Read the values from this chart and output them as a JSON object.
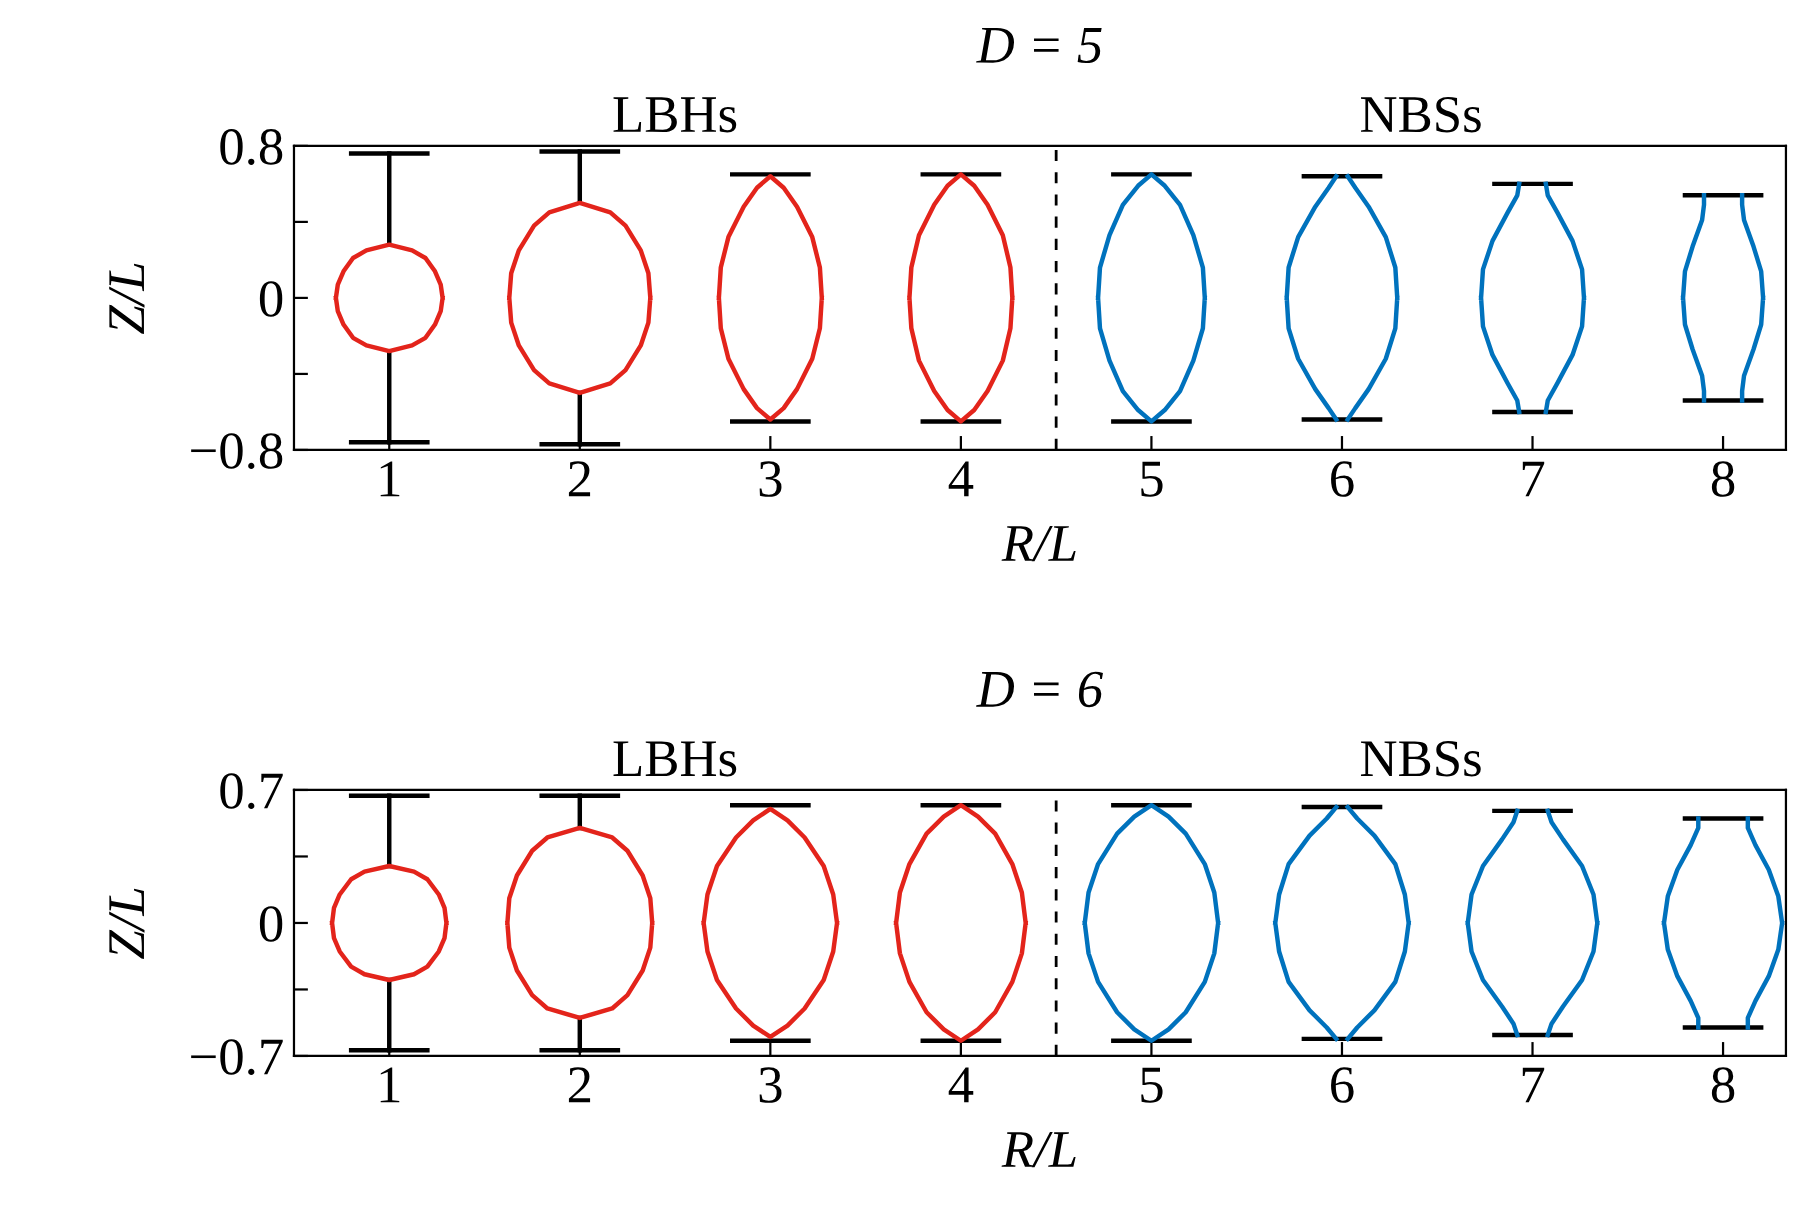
{
  "chart_data": [
    {
      "type": "line",
      "title": "D = 5",
      "xlabel": "R/L",
      "ylabel": "Z/L",
      "xlim": [
        0.5,
        8.33
      ],
      "ylim": [
        -0.8,
        0.8
      ],
      "xticks": [
        1,
        2,
        3,
        4,
        5,
        6,
        7,
        8
      ],
      "yticks": [
        {
          "value": -0.8,
          "label": "−0.8"
        },
        {
          "value": -0.4,
          "label": null
        },
        0,
        {
          "value": 0.4,
          "label": null
        },
        0.8
      ],
      "ref_lines": [
        {
          "axis": "x",
          "value": 4.5,
          "color": "#000000",
          "line_style": "dashed"
        }
      ],
      "annotations": [
        "LBHs",
        "NBSs"
      ],
      "series": [
        {
          "color": "#000000",
          "x": [
            0.8,
            1.2,
            null,
            1.8,
            2.2,
            null,
            2.8,
            3.2,
            null,
            3.8,
            4.2,
            null,
            4.8,
            5.2,
            null,
            5.8,
            6.2,
            null,
            6.8,
            7.2,
            null,
            7.8,
            8.2
          ],
          "values": [
            0.76,
            0.76,
            null,
            0.77,
            0.77,
            null,
            0.65,
            0.65,
            null,
            0.65,
            0.65,
            null,
            0.65,
            0.65,
            null,
            0.64,
            0.64,
            null,
            0.6,
            0.6,
            null,
            0.54,
            0.54
          ]
        },
        {
          "color": "#000000",
          "x": [
            0.8,
            1.2,
            null,
            1.8,
            2.2,
            null,
            2.8,
            3.2,
            null,
            3.8,
            4.2,
            null,
            4.8,
            5.2,
            null,
            5.8,
            6.2,
            null,
            6.8,
            7.2,
            null,
            7.8,
            8.2
          ],
          "values": [
            -0.76,
            -0.76,
            null,
            -0.77,
            -0.77,
            null,
            -0.65,
            -0.65,
            null,
            -0.65,
            -0.65,
            null,
            -0.65,
            -0.65,
            null,
            -0.64,
            -0.64,
            null,
            -0.6,
            -0.6,
            null,
            -0.54,
            -0.54
          ]
        },
        {
          "color": "#000000",
          "x": [
            1,
            1,
            1.5,
            2,
            2
          ],
          "values": [
            0.76,
            0.28,
            null,
            0.77,
            0.5
          ]
        },
        {
          "color": "#000000",
          "x": [
            1,
            1,
            1.5,
            2,
            2
          ],
          "values": [
            -0.28,
            -0.76,
            null,
            -0.5,
            -0.77
          ]
        },
        {
          "color": "#e3241b",
          "x": [
            0.72,
            0.73,
            0.76,
            0.81,
            0.88,
            1,
            1.12,
            1.19,
            1.24,
            1.27,
            1.28,
            1,
            0.72,
            0.73,
            0.76,
            0.81,
            0.88,
            1,
            1.12,
            1.19,
            1.24,
            1.27,
            1.28
          ],
          "values": [
            0,
            0.07,
            0.14,
            0.21,
            0.25,
            0.28,
            0.25,
            0.21,
            0.14,
            0.07,
            0,
            null,
            0,
            -0.07,
            -0.14,
            -0.21,
            -0.25,
            -0.28,
            -0.25,
            -0.21,
            -0.14,
            -0.07,
            0
          ]
        },
        {
          "color": "#e3241b",
          "x": [
            1.63,
            1.64,
            1.68,
            1.76,
            1.84,
            2,
            2.16,
            2.24,
            2.32,
            2.36,
            2.37,
            2,
            1.63,
            1.64,
            1.68,
            1.76,
            1.84,
            2,
            2.16,
            2.24,
            2.32,
            2.36,
            2.37
          ],
          "values": [
            0,
            0.13,
            0.25,
            0.38,
            0.45,
            0.5,
            0.45,
            0.38,
            0.25,
            0.13,
            0,
            null,
            0,
            -0.13,
            -0.25,
            -0.38,
            -0.45,
            -0.5,
            -0.45,
            -0.38,
            -0.25,
            -0.13,
            0
          ]
        },
        {
          "color": "#e3241b",
          "x": [
            2.73,
            2.74,
            2.78,
            2.86,
            2.93,
            3,
            3.07,
            3.14,
            3.22,
            3.26,
            3.27,
            3,
            2.73,
            2.74,
            2.78,
            2.86,
            2.93,
            3,
            3.07,
            3.14,
            3.22,
            3.26,
            3.27
          ],
          "values": [
            0,
            0.16,
            0.32,
            0.48,
            0.58,
            0.64,
            0.58,
            0.48,
            0.32,
            0.16,
            0,
            null,
            0,
            -0.16,
            -0.32,
            -0.48,
            -0.58,
            -0.64,
            -0.58,
            -0.48,
            -0.32,
            -0.16,
            0
          ]
        },
        {
          "color": "#e3241b",
          "x": [
            3.73,
            3.74,
            3.78,
            3.86,
            3.93,
            4,
            4.07,
            4.14,
            4.22,
            4.26,
            4.27,
            4,
            3.73,
            3.74,
            3.78,
            3.86,
            3.93,
            4,
            4.07,
            4.14,
            4.22,
            4.26,
            4.27
          ],
          "values": [
            0,
            0.16,
            0.33,
            0.49,
            0.59,
            0.65,
            0.59,
            0.49,
            0.33,
            0.16,
            0,
            null,
            0,
            -0.16,
            -0.33,
            -0.49,
            -0.59,
            -0.65,
            -0.59,
            -0.49,
            -0.33,
            -0.16,
            0
          ]
        },
        {
          "color": "#0072bd",
          "x": [
            4.72,
            4.73,
            4.78,
            4.85,
            4.93,
            5,
            5.07,
            5.15,
            5.22,
            5.27,
            5.28,
            5,
            4.72,
            4.73,
            4.78,
            4.85,
            4.93,
            5,
            5.07,
            5.15,
            5.22,
            5.27,
            5.28
          ],
          "values": [
            0,
            0.16,
            0.33,
            0.49,
            0.59,
            0.65,
            0.59,
            0.49,
            0.33,
            0.16,
            0,
            null,
            0,
            -0.16,
            -0.33,
            -0.49,
            -0.59,
            -0.65,
            -0.59,
            -0.49,
            -0.33,
            -0.16,
            0
          ]
        },
        {
          "color": "#0072bd",
          "x": [
            5.71,
            5.72,
            5.77,
            5.86,
            5.93,
            5.97,
            6,
            6.03,
            6.07,
            6.14,
            6.23,
            6.28,
            6.29,
            6,
            5.71,
            5.72,
            5.77,
            5.86,
            5.93,
            5.97,
            6,
            6.03,
            6.07,
            6.14,
            6.23,
            6.28,
            6.29
          ],
          "values": [
            0,
            0.16,
            0.32,
            0.48,
            0.58,
            0.64,
            null,
            0.64,
            0.58,
            0.48,
            0.32,
            0.16,
            0,
            null,
            0,
            -0.16,
            -0.32,
            -0.48,
            -0.58,
            -0.64,
            null,
            -0.64,
            -0.58,
            -0.48,
            -0.32,
            -0.16,
            0
          ]
        },
        {
          "color": "#0072bd",
          "x": [
            6.73,
            6.74,
            6.79,
            6.87,
            6.92,
            6.93,
            7,
            7.07,
            7.08,
            7.13,
            7.21,
            7.26,
            7.27,
            7,
            6.73,
            6.74,
            6.79,
            6.87,
            6.92,
            6.93,
            7,
            7.07,
            7.08,
            7.13,
            7.21,
            7.26,
            7.27
          ],
          "values": [
            0,
            0.15,
            0.3,
            0.45,
            0.54,
            0.6,
            null,
            0.6,
            0.54,
            0.45,
            0.3,
            0.15,
            0,
            null,
            0,
            -0.15,
            -0.3,
            -0.45,
            -0.54,
            -0.6,
            null,
            -0.6,
            -0.54,
            -0.45,
            -0.3,
            -0.15,
            0
          ]
        },
        {
          "color": "#0072bd",
          "x": [
            7.79,
            7.8,
            7.84,
            7.89,
            7.9,
            7.9,
            8,
            8.1,
            8.1,
            8.11,
            8.16,
            8.2,
            8.21,
            8,
            7.79,
            7.8,
            7.84,
            7.89,
            7.9,
            7.9,
            8,
            8.1,
            8.1,
            8.11,
            8.16,
            8.2,
            8.21
          ],
          "values": [
            0,
            0.14,
            0.27,
            0.41,
            0.49,
            0.54,
            null,
            0.54,
            0.49,
            0.41,
            0.27,
            0.14,
            0,
            null,
            0,
            -0.14,
            -0.27,
            -0.41,
            -0.49,
            -0.54,
            null,
            -0.54,
            -0.49,
            -0.41,
            -0.27,
            -0.14,
            0
          ]
        }
      ]
    },
    {
      "type": "line",
      "title": "D = 6",
      "xlabel": "R/L",
      "ylabel": "Z/L",
      "xlim": [
        0.5,
        8.33
      ],
      "ylim": [
        -0.7,
        0.7
      ],
      "xticks": [
        1,
        2,
        3,
        4,
        5,
        6,
        7,
        8
      ],
      "yticks": [
        {
          "value": -0.7,
          "label": "−0.7"
        },
        {
          "value": -0.35,
          "label": null
        },
        0,
        {
          "value": 0.35,
          "label": null
        },
        0.7
      ],
      "ref_lines": [
        {
          "axis": "x",
          "value": 4.5,
          "color": "#000000",
          "line_style": "dashed"
        }
      ],
      "annotations": [
        "LBHs",
        "NBSs"
      ],
      "series": [
        {
          "color": "#000000",
          "x": [
            0.8,
            1.2,
            null,
            1.8,
            2.2,
            null,
            2.8,
            3.2,
            null,
            3.8,
            4.2,
            null,
            4.8,
            5.2,
            null,
            5.8,
            6.2,
            null,
            6.8,
            7.2,
            null,
            7.8,
            8.2
          ],
          "values": [
            0.67,
            0.67,
            null,
            0.67,
            0.67,
            null,
            0.62,
            0.62,
            null,
            0.62,
            0.62,
            null,
            0.62,
            0.62,
            null,
            0.61,
            0.61,
            null,
            0.59,
            0.59,
            null,
            0.55,
            0.55
          ]
        },
        {
          "color": "#000000",
          "x": [
            0.8,
            1.2,
            null,
            1.8,
            2.2,
            null,
            2.8,
            3.2,
            null,
            3.8,
            4.2,
            null,
            4.8,
            5.2,
            null,
            5.8,
            6.2,
            null,
            6.8,
            7.2,
            null,
            7.8,
            8.2
          ],
          "values": [
            -0.67,
            -0.67,
            null,
            -0.67,
            -0.67,
            null,
            -0.62,
            -0.62,
            null,
            -0.62,
            -0.62,
            null,
            -0.62,
            -0.62,
            null,
            -0.61,
            -0.61,
            null,
            -0.59,
            -0.59,
            null,
            -0.55,
            -0.55
          ]
        },
        {
          "color": "#000000",
          "x": [
            1,
            1,
            1.5,
            2,
            2
          ],
          "values": [
            0.67,
            0.3,
            null,
            0.67,
            0.5
          ]
        },
        {
          "color": "#000000",
          "x": [
            1,
            1,
            1.5,
            2,
            2
          ],
          "values": [
            -0.3,
            -0.67,
            null,
            -0.5,
            -0.67
          ]
        },
        {
          "color": "#e3241b",
          "x": [
            0.7,
            0.71,
            0.74,
            0.8,
            0.87,
            1,
            1.13,
            1.2,
            1.26,
            1.29,
            1.3,
            1,
            0.7,
            0.71,
            0.74,
            0.8,
            0.87,
            1,
            1.13,
            1.2,
            1.26,
            1.29,
            1.3
          ],
          "values": [
            0,
            0.08,
            0.15,
            0.23,
            0.27,
            0.3,
            0.27,
            0.23,
            0.15,
            0.08,
            0,
            null,
            0,
            -0.08,
            -0.15,
            -0.23,
            -0.27,
            -0.3,
            -0.27,
            -0.23,
            -0.15,
            -0.08,
            0
          ]
        },
        {
          "color": "#e3241b",
          "x": [
            1.62,
            1.63,
            1.67,
            1.75,
            1.83,
            2,
            2.17,
            2.25,
            2.33,
            2.37,
            2.38,
            2,
            1.62,
            1.63,
            1.67,
            1.75,
            1.83,
            2,
            2.17,
            2.25,
            2.33,
            2.37,
            2.38
          ],
          "values": [
            0,
            0.13,
            0.25,
            0.38,
            0.45,
            0.5,
            0.45,
            0.38,
            0.25,
            0.13,
            0,
            null,
            0,
            -0.13,
            -0.25,
            -0.38,
            -0.45,
            -0.5,
            -0.45,
            -0.38,
            -0.25,
            -0.13,
            0
          ]
        },
        {
          "color": "#e3241b",
          "x": [
            2.65,
            2.67,
            2.72,
            2.82,
            2.91,
            3,
            3.09,
            3.18,
            3.28,
            3.33,
            3.35,
            3,
            2.65,
            2.67,
            2.72,
            2.82,
            2.91,
            3,
            3.09,
            3.18,
            3.28,
            3.33,
            3.35
          ],
          "values": [
            0,
            0.15,
            0.3,
            0.45,
            0.54,
            0.6,
            0.54,
            0.45,
            0.3,
            0.15,
            0,
            null,
            0,
            -0.15,
            -0.3,
            -0.45,
            -0.54,
            -0.6,
            -0.54,
            -0.45,
            -0.3,
            -0.15,
            0
          ]
        },
        {
          "color": "#e3241b",
          "x": [
            3.66,
            3.68,
            3.73,
            3.82,
            3.91,
            4,
            4.09,
            4.18,
            4.27,
            4.32,
            4.34,
            4,
            3.66,
            3.68,
            3.73,
            3.82,
            3.91,
            4,
            4.09,
            4.18,
            4.27,
            4.32,
            4.34
          ],
          "values": [
            0,
            0.16,
            0.31,
            0.47,
            0.56,
            0.62,
            0.56,
            0.47,
            0.31,
            0.16,
            0,
            null,
            0,
            -0.16,
            -0.31,
            -0.47,
            -0.56,
            -0.62,
            -0.56,
            -0.47,
            -0.31,
            -0.16,
            0
          ]
        },
        {
          "color": "#0072bd",
          "x": [
            4.65,
            4.67,
            4.72,
            4.82,
            4.91,
            5,
            5.09,
            5.18,
            5.28,
            5.33,
            5.35,
            5,
            4.65,
            4.67,
            4.72,
            4.82,
            4.91,
            5,
            5.09,
            5.18,
            5.28,
            5.33,
            5.35
          ],
          "values": [
            0,
            0.16,
            0.31,
            0.47,
            0.56,
            0.62,
            0.56,
            0.47,
            0.31,
            0.16,
            0,
            null,
            0,
            -0.16,
            -0.31,
            -0.47,
            -0.56,
            -0.62,
            -0.56,
            -0.47,
            -0.31,
            -0.16,
            0
          ]
        },
        {
          "color": "#0072bd",
          "x": [
            5.65,
            5.67,
            5.72,
            5.83,
            5.92,
            5.97,
            6,
            6.03,
            6.08,
            6.17,
            6.28,
            6.33,
            6.35,
            6,
            5.65,
            5.67,
            5.72,
            5.83,
            5.92,
            5.97,
            6,
            6.03,
            6.08,
            6.17,
            6.28,
            6.33,
            6.35
          ],
          "values": [
            0,
            0.15,
            0.31,
            0.46,
            0.55,
            0.61,
            null,
            0.61,
            0.55,
            0.46,
            0.31,
            0.15,
            0,
            null,
            0,
            -0.15,
            -0.31,
            -0.46,
            -0.55,
            -0.61,
            null,
            -0.61,
            -0.55,
            -0.46,
            -0.31,
            -0.15,
            0
          ]
        },
        {
          "color": "#0072bd",
          "x": [
            6.66,
            6.68,
            6.74,
            6.84,
            6.9,
            6.92,
            7,
            7.08,
            7.1,
            7.16,
            7.26,
            7.32,
            7.34,
            7,
            6.66,
            6.68,
            6.74,
            6.84,
            6.9,
            6.92,
            7,
            7.08,
            7.1,
            7.16,
            7.26,
            7.32,
            7.34
          ],
          "values": [
            0,
            0.15,
            0.3,
            0.44,
            0.53,
            0.59,
            null,
            0.59,
            0.53,
            0.44,
            0.3,
            0.15,
            0,
            null,
            0,
            -0.15,
            -0.3,
            -0.44,
            -0.53,
            -0.59,
            null,
            -0.59,
            -0.53,
            -0.44,
            -0.3,
            -0.15,
            0
          ]
        },
        {
          "color": "#0072bd",
          "x": [
            7.69,
            7.71,
            7.76,
            7.83,
            7.87,
            7.87,
            8,
            8.13,
            8.13,
            8.17,
            8.24,
            8.29,
            8.31,
            8,
            7.69,
            7.71,
            7.76,
            7.83,
            7.87,
            7.87,
            8,
            8.13,
            8.13,
            8.17,
            8.24,
            8.29,
            8.31
          ],
          "values": [
            0,
            0.14,
            0.28,
            0.41,
            0.5,
            0.55,
            null,
            0.55,
            0.5,
            0.41,
            0.28,
            0.14,
            0,
            null,
            0,
            -0.14,
            -0.28,
            -0.41,
            -0.5,
            -0.55,
            null,
            -0.55,
            -0.5,
            -0.41,
            -0.28,
            -0.14,
            0
          ]
        }
      ]
    }
  ]
}
